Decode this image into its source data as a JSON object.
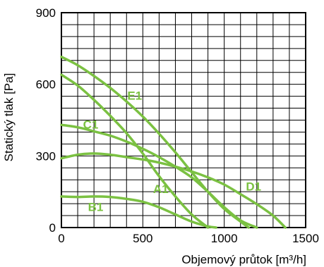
{
  "chart_data": {
    "type": "line",
    "title": "",
    "xlabel": "Objemový průtok [m³/h]",
    "ylabel": "Statický tlak [Pa]",
    "xlim": [
      0,
      1500
    ],
    "ylim": [
      0,
      900
    ],
    "xticks": [
      0,
      500,
      1000,
      1500
    ],
    "yticks": [
      0,
      300,
      600,
      900
    ],
    "x_tick_labels": [
      "0",
      "500",
      "1000",
      "1500"
    ],
    "y_tick_labels": [
      "0",
      "300",
      "600",
      "900"
    ],
    "grid": true,
    "grid_x_step": 100,
    "grid_y_step": 50,
    "series_color": "#7bc142",
    "series": [
      {
        "name": "E1",
        "label_at": [
          450,
          535
        ],
        "points": [
          [
            0,
            715
          ],
          [
            100,
            680
          ],
          [
            200,
            635
          ],
          [
            300,
            585
          ],
          [
            400,
            528
          ],
          [
            500,
            465
          ],
          [
            600,
            393
          ],
          [
            700,
            315
          ],
          [
            800,
            232
          ],
          [
            900,
            150
          ],
          [
            1000,
            78
          ],
          [
            1100,
            25
          ],
          [
            1150,
            0
          ]
        ]
      },
      {
        "name": "C1",
        "label_at": [
          180,
          415
        ],
        "points": [
          [
            0,
            430
          ],
          [
            100,
            420
          ],
          [
            200,
            403
          ],
          [
            300,
            385
          ],
          [
            400,
            360
          ],
          [
            500,
            330
          ],
          [
            600,
            295
          ],
          [
            700,
            255
          ],
          [
            800,
            210
          ],
          [
            900,
            150
          ],
          [
            1000,
            85
          ],
          [
            1100,
            30
          ],
          [
            1200,
            0
          ]
        ]
      },
      {
        "name": "A1",
        "label_at": [
          610,
          145
        ],
        "points": [
          [
            0,
            640
          ],
          [
            100,
            595
          ],
          [
            200,
            535
          ],
          [
            300,
            468
          ],
          [
            400,
            395
          ],
          [
            500,
            310
          ],
          [
            600,
            215
          ],
          [
            700,
            130
          ],
          [
            800,
            55
          ],
          [
            900,
            0
          ]
        ]
      },
      {
        "name": "D1",
        "label_at": [
          1180,
          155
        ],
        "points": [
          [
            0,
            290
          ],
          [
            100,
            305
          ],
          [
            200,
            310
          ],
          [
            300,
            305
          ],
          [
            400,
            295
          ],
          [
            500,
            285
          ],
          [
            600,
            272
          ],
          [
            700,
            255
          ],
          [
            800,
            235
          ],
          [
            900,
            210
          ],
          [
            1000,
            180
          ],
          [
            1100,
            140
          ],
          [
            1200,
            98
          ],
          [
            1300,
            50
          ],
          [
            1375,
            0
          ]
        ]
      },
      {
        "name": "B1",
        "label_at": [
          210,
          70
        ],
        "points": [
          [
            0,
            130
          ],
          [
            100,
            128
          ],
          [
            200,
            130
          ],
          [
            300,
            128
          ],
          [
            400,
            120
          ],
          [
            500,
            108
          ],
          [
            600,
            85
          ],
          [
            700,
            55
          ],
          [
            800,
            25
          ],
          [
            900,
            5
          ],
          [
            950,
            0
          ]
        ]
      }
    ]
  }
}
